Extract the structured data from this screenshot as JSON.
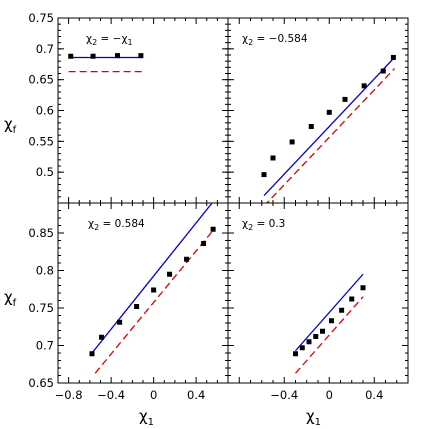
{
  "figure": {
    "ylabel_main": "χ",
    "ylabel_sub": "f",
    "xlabel_main": "χ",
    "xlabel_sub": "1"
  },
  "colors": {
    "solid_line": "#0000cc",
    "dashed_line": "#dd0000",
    "markers": "#000000"
  },
  "chart_data": [
    {
      "type": "scatter",
      "panel": "top-left",
      "label_main": "χ",
      "label_sub": "2",
      "label_rest": " = −χ",
      "label_rest_sub": "1",
      "xlim": [
        -0.9,
        0.7
      ],
      "ylim": [
        0.45,
        0.75
      ],
      "yticks": [
        "0.5",
        "0.55",
        "0.6",
        "0.65",
        "0.7",
        "0.75"
      ],
      "ytick_values": [
        0.5,
        0.55,
        0.6,
        0.65,
        0.7,
        0.75
      ],
      "xticks": [],
      "x": [
        -0.78,
        -0.57,
        -0.34,
        -0.12
      ],
      "y": [
        0.688,
        0.688,
        0.689,
        0.689
      ],
      "solid": {
        "x": [
          -0.8,
          -0.1
        ],
        "y": [
          0.686,
          0.686
        ]
      },
      "dashed": {
        "x": [
          -0.8,
          -0.1
        ],
        "y": [
          0.663,
          0.663
        ]
      }
    },
    {
      "type": "scatter",
      "panel": "top-right",
      "label_main": "χ",
      "label_sub": "2",
      "label_rest": " = −0.584",
      "label_rest_sub": "",
      "xlim": [
        -0.9,
        0.7
      ],
      "ylim": [
        0.45,
        0.75
      ],
      "yticks": [],
      "ytick_values": [
        0.5,
        0.55,
        0.6,
        0.65,
        0.7,
        0.75
      ],
      "xticks": [],
      "x": [
        -0.58,
        -0.5,
        -0.33,
        -0.16,
        0.0,
        0.14,
        0.31,
        0.48,
        0.57
      ],
      "y": [
        0.496,
        0.523,
        0.549,
        0.574,
        0.597,
        0.618,
        0.64,
        0.664,
        0.686
      ],
      "solid": {
        "x": [
          -0.58,
          0.58
        ],
        "y": [
          0.462,
          0.686
        ]
      },
      "dashed": {
        "x": [
          -0.58,
          0.58
        ],
        "y": [
          0.445,
          0.668
        ]
      }
    },
    {
      "type": "scatter",
      "panel": "bottom-left",
      "label_main": "χ",
      "label_sub": "2",
      "label_rest": " = 0.584",
      "label_rest_sub": "",
      "xlim": [
        -0.9,
        0.7
      ],
      "ylim": [
        0.65,
        0.89
      ],
      "yticks": [
        "0.65",
        "0.7",
        "0.75",
        "0.8",
        "0.85"
      ],
      "ytick_values": [
        0.65,
        0.7,
        0.75,
        0.8,
        0.85
      ],
      "xticks": [
        "−0.8",
        "−0.4",
        "0",
        "0.4"
      ],
      "xtick_values": [
        -0.8,
        -0.4,
        0,
        0.4
      ],
      "x": [
        -0.58,
        -0.49,
        -0.32,
        -0.16,
        0.0,
        0.15,
        0.31,
        0.47,
        0.56
      ],
      "y": [
        0.689,
        0.711,
        0.731,
        0.752,
        0.774,
        0.795,
        0.815,
        0.836,
        0.855
      ],
      "solid": {
        "x": [
          -0.58,
          0.55
        ],
        "y": [
          0.69,
          0.89
        ]
      },
      "dashed": {
        "x": [
          -0.55,
          0.58
        ],
        "y": [
          0.663,
          0.857
        ]
      }
    },
    {
      "type": "scatter",
      "panel": "bottom-right",
      "label_main": "χ",
      "label_sub": "2",
      "label_rest": " = 0.3",
      "label_rest_sub": "",
      "xlim": [
        -0.9,
        0.7
      ],
      "ylim": [
        0.65,
        0.89
      ],
      "yticks": [],
      "ytick_values": [
        0.65,
        0.7,
        0.75,
        0.8,
        0.85
      ],
      "xticks": [
        "−0.4",
        "0",
        "0.4"
      ],
      "xtick_values": [
        -0.4,
        0,
        0.4
      ],
      "x": [
        -0.3,
        -0.24,
        -0.18,
        -0.12,
        -0.06,
        0.02,
        0.11,
        0.2,
        0.3
      ],
      "y": [
        0.689,
        0.697,
        0.705,
        0.712,
        0.719,
        0.733,
        0.747,
        0.762,
        0.777
      ],
      "solid": {
        "x": [
          -0.3,
          0.3
        ],
        "y": [
          0.693,
          0.795
        ]
      },
      "dashed": {
        "x": [
          -0.3,
          0.3
        ],
        "y": [
          0.663,
          0.765
        ]
      }
    }
  ]
}
